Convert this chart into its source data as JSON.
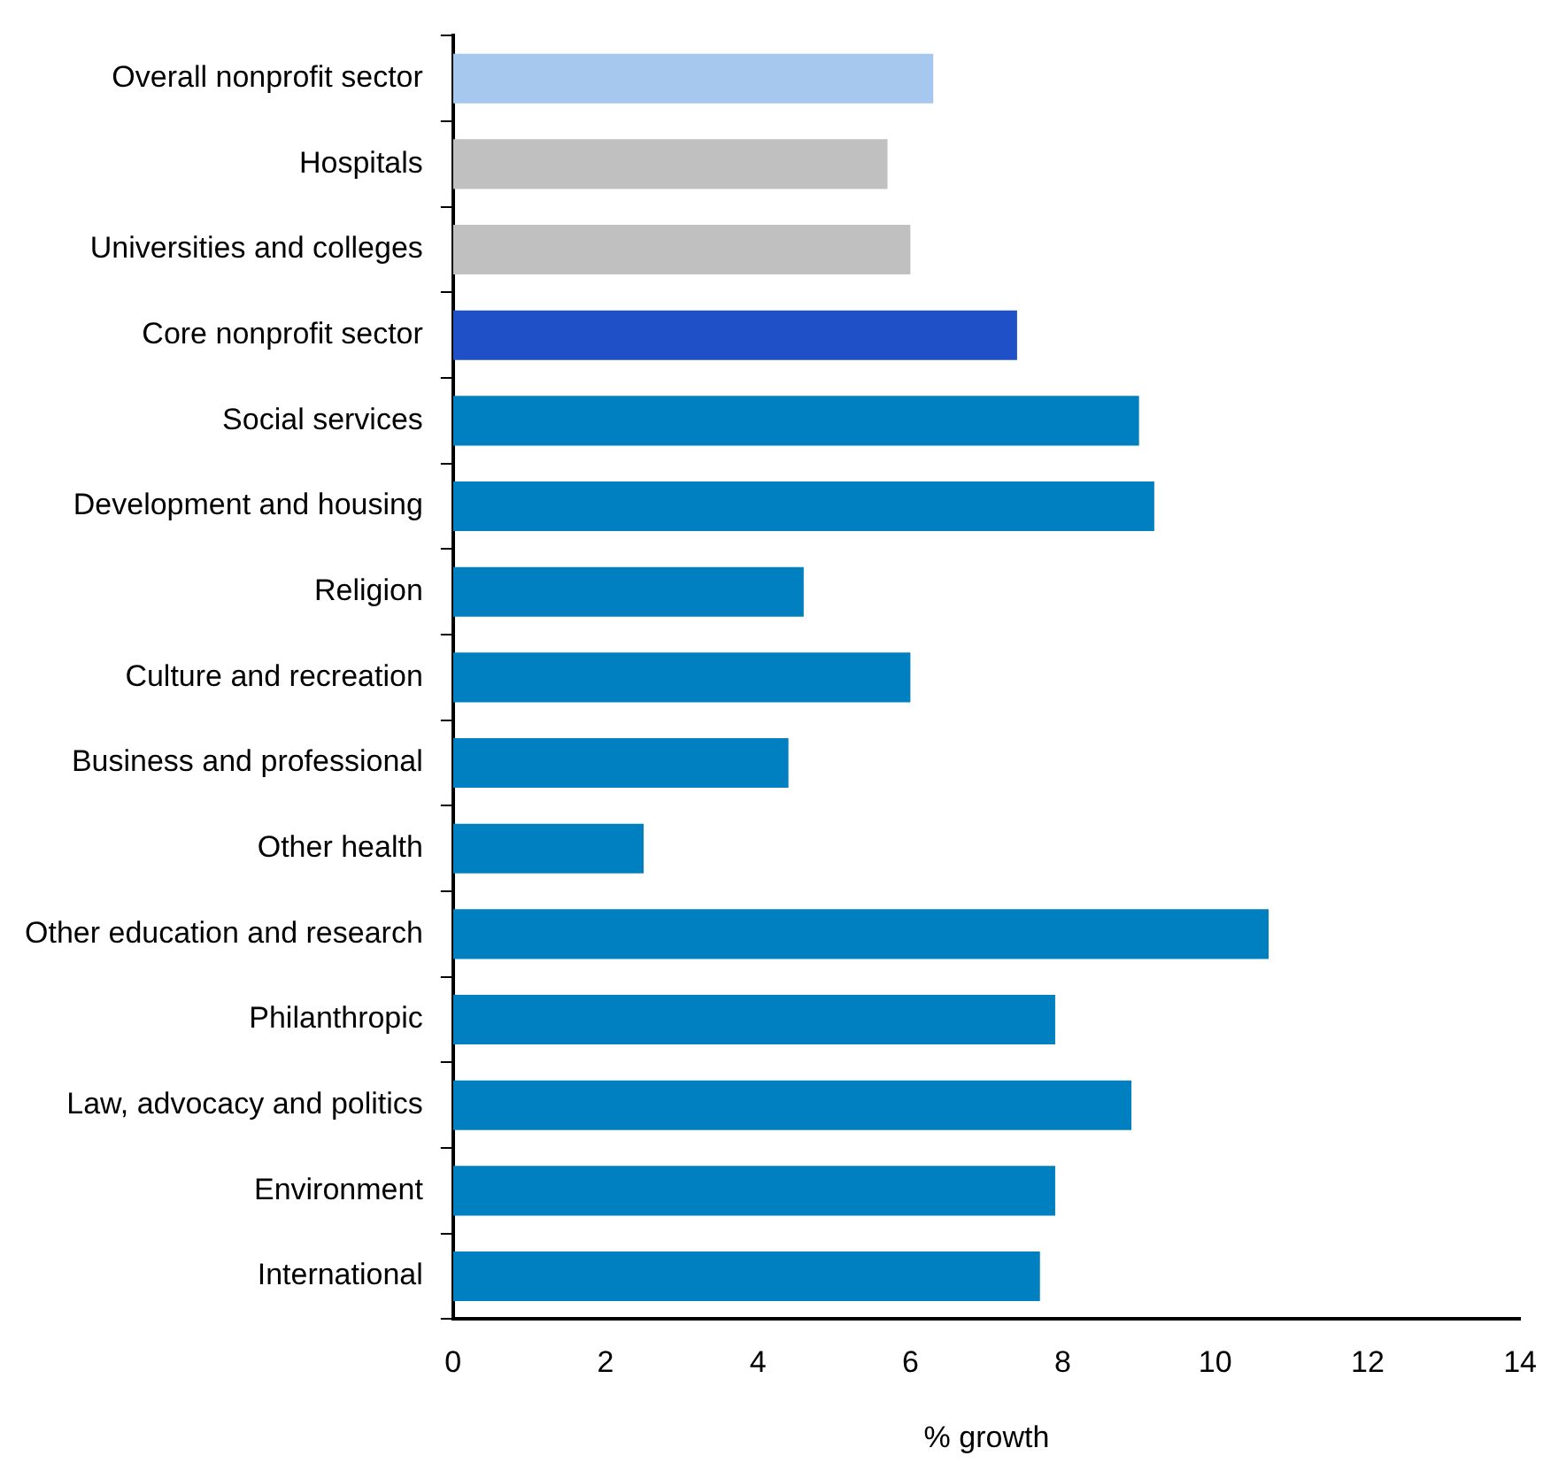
{
  "chart_data": {
    "type": "bar",
    "orientation": "horizontal",
    "xlabel": "% growth",
    "categories": [
      "Overall nonprofit sector",
      "Hospitals",
      "Universities and colleges",
      "Core nonprofit sector",
      "Social services",
      "Development and housing",
      "Religion",
      "Culture and recreation",
      "Business and professional",
      "Other health",
      "Other education and research",
      "Philanthropic",
      "Law, advocacy and politics",
      "Environment",
      "International"
    ],
    "values": [
      6.3,
      5.7,
      6.0,
      7.4,
      9.0,
      9.2,
      4.6,
      6.0,
      4.4,
      2.5,
      10.7,
      7.9,
      8.9,
      7.9,
      7.7
    ],
    "colors": [
      "#a6c8ee",
      "#c0c0c0",
      "#c0c0c0",
      "#1f50c8",
      "#0080c0",
      "#0080c0",
      "#0080c0",
      "#0080c0",
      "#0080c0",
      "#0080c0",
      "#0080c0",
      "#0080c0",
      "#0080c0",
      "#0080c0",
      "#0080c0"
    ],
    "xlim": [
      0,
      14
    ],
    "xticks": [
      0,
      2,
      4,
      6,
      8,
      10,
      12,
      14
    ],
    "grid": false,
    "legend": false
  }
}
